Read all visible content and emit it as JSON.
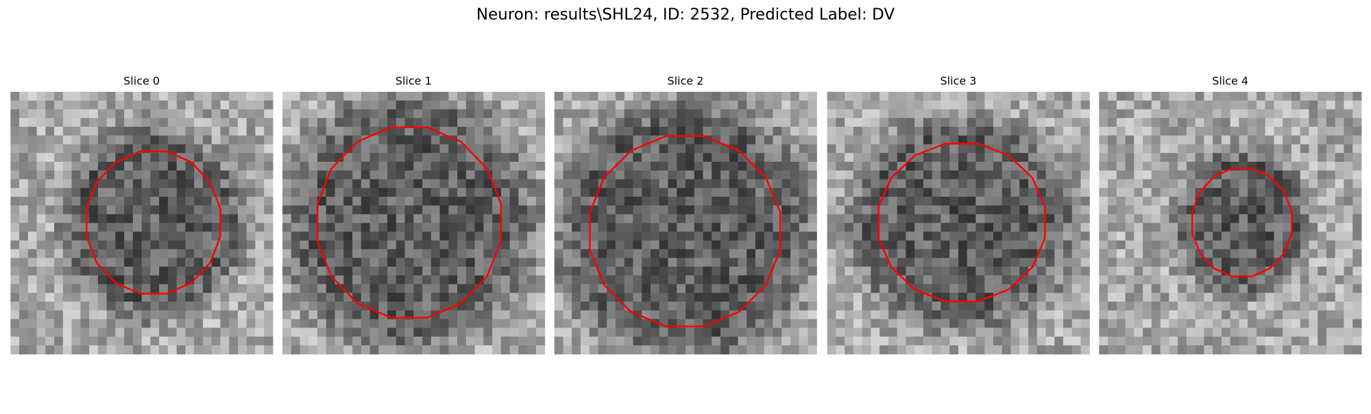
{
  "title": "Neuron: results\\SHL24, ID: 2532, Predicted Label: DV",
  "panels": [
    {
      "title": "Slice 0"
    },
    {
      "title": "Slice 1"
    },
    {
      "title": "Slice 2"
    },
    {
      "title": "Slice 3"
    },
    {
      "title": "Slice 4"
    }
  ]
}
